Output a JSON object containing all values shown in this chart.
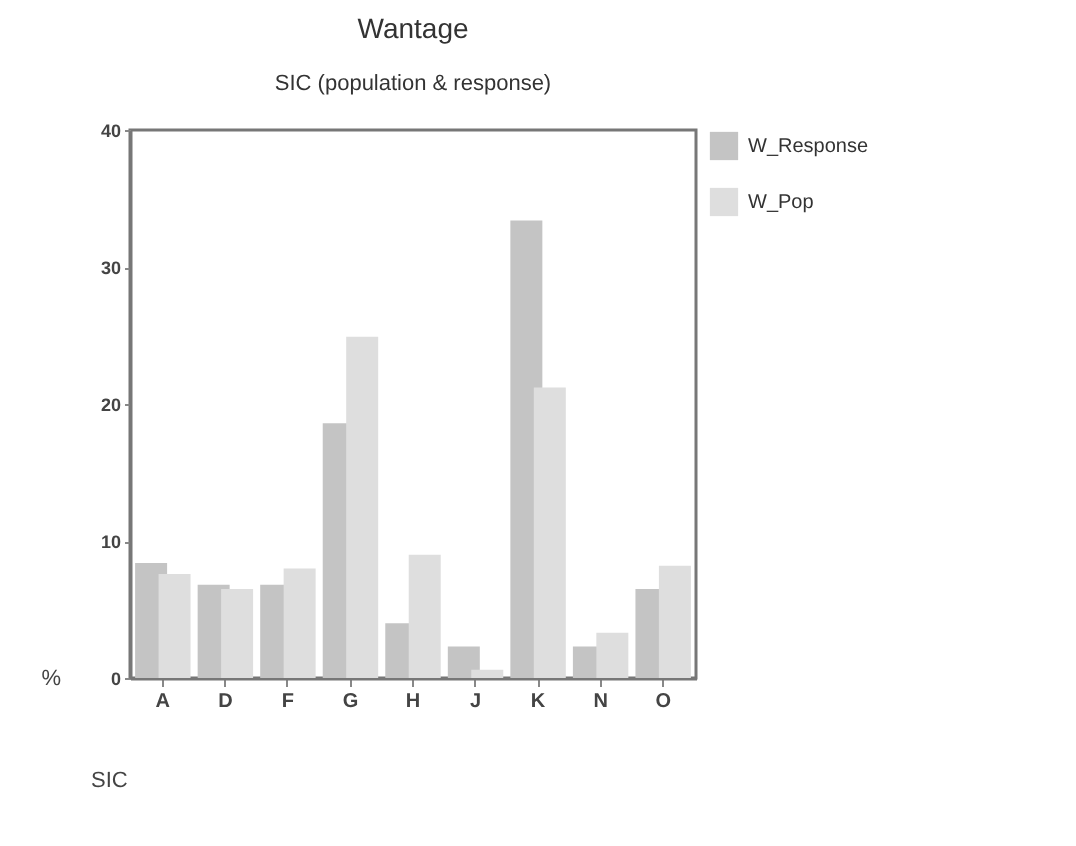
{
  "chart_data": {
    "type": "bar",
    "title": "Wantage",
    "subtitle": "SIC (population & response)",
    "xlabel": "SIC",
    "ylabel": "%",
    "categories": [
      "A",
      "D",
      "F",
      "G",
      "H",
      "J",
      "K",
      "N",
      "O"
    ],
    "series": [
      {
        "name": "W_Response",
        "color": "#c4c4c4",
        "values": [
          8.4,
          6.8,
          6.8,
          18.6,
          4.0,
          2.3,
          33.4,
          2.3,
          6.5
        ]
      },
      {
        "name": "W_Pop",
        "color": "#dedede",
        "values": [
          7.6,
          6.5,
          8.0,
          24.9,
          9.0,
          0.6,
          21.2,
          3.3,
          8.2
        ]
      }
    ],
    "ylim": [
      0,
      40
    ],
    "yticks": [
      0,
      10,
      20,
      30,
      40
    ],
    "grid": false,
    "legend": "right"
  }
}
